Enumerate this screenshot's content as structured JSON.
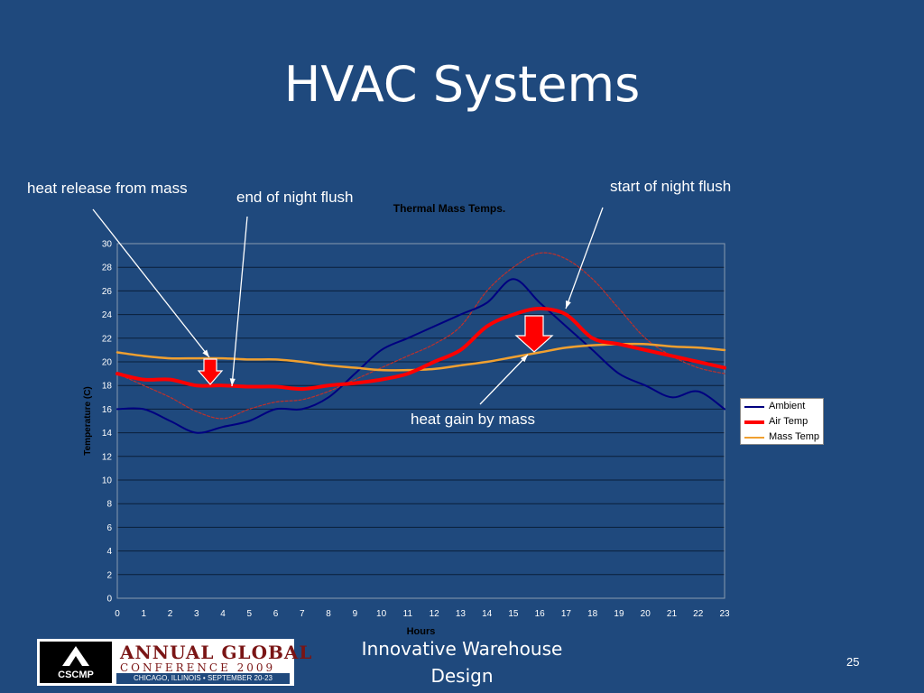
{
  "slide": {
    "title": "HVAC Systems",
    "footer": "Innovative Warehouse Design",
    "page_number": "25"
  },
  "annotations": {
    "heat_release": "heat release from mass",
    "end_flush": "end of night flush",
    "start_flush": "start of night flush",
    "heat_gain": "heat gain by  mass"
  },
  "logo": {
    "mark": "CSCMP",
    "line1": "ANNUAL GLOBAL",
    "line2": "CONFERENCE 2009",
    "line3": "CHICAGO, ILLINOIS • SEPTEMBER 20-23"
  },
  "colors": {
    "background": "#1f497d",
    "ambient": "#000080",
    "air_temp": "#ff0000",
    "mass_temp": "#f0a030",
    "plot_bg": "#1f497d",
    "grid": "#0a1f3a"
  },
  "chart_data": {
    "type": "line",
    "title": "Thermal Mass Temps.",
    "xlabel": "Hours",
    "ylabel": "Temperature (C)",
    "xlim": [
      0,
      23
    ],
    "ylim": [
      0,
      30
    ],
    "x_ticks": [
      "0",
      "1",
      "2",
      "3",
      "4",
      "5",
      "6",
      "7",
      "8",
      "9",
      "10",
      "11",
      "12",
      "13",
      "14",
      "15",
      "16",
      "17",
      "18",
      "19",
      "20",
      "21",
      "22",
      "23"
    ],
    "y_ticks": [
      "0",
      "2",
      "4",
      "6",
      "8",
      "10",
      "12",
      "14",
      "16",
      "18",
      "20",
      "22",
      "24",
      "26",
      "28",
      "30"
    ],
    "legend_position": "right",
    "x": [
      0,
      1,
      2,
      3,
      4,
      5,
      6,
      7,
      8,
      9,
      10,
      11,
      12,
      13,
      14,
      15,
      16,
      17,
      18,
      19,
      20,
      21,
      22,
      23
    ],
    "series": [
      {
        "name": "Ambient",
        "values": [
          16,
          16,
          15,
          14,
          14.5,
          15,
          16,
          16,
          17,
          19,
          21,
          22,
          23,
          24,
          25,
          27,
          25,
          23,
          21,
          19,
          18,
          17,
          17.5,
          16
        ]
      },
      {
        "name": "Air Temp",
        "values": [
          19,
          18.5,
          18.5,
          18,
          18,
          17.9,
          17.9,
          17.7,
          18,
          18.2,
          18.5,
          19,
          20,
          21,
          23,
          24,
          24.5,
          24,
          22,
          21.5,
          21,
          20.5,
          20,
          19.5
        ]
      },
      {
        "name": "Mass Temp",
        "values": [
          20.8,
          20.5,
          20.3,
          20.3,
          20.3,
          20.2,
          20.2,
          20,
          19.7,
          19.5,
          19.3,
          19.3,
          19.4,
          19.7,
          20,
          20.4,
          20.8,
          21.2,
          21.4,
          21.5,
          21.5,
          21.3,
          21.2,
          21
        ]
      },
      {
        "values": [
          19,
          18,
          17,
          15.8,
          15.2,
          16,
          16.6,
          16.8,
          17.5,
          18.5,
          19.5,
          20.5,
          21.5,
          23,
          26,
          28,
          29.2,
          28.7,
          27,
          24.5,
          22,
          20.5,
          19.5,
          19
        ]
      }
    ]
  }
}
